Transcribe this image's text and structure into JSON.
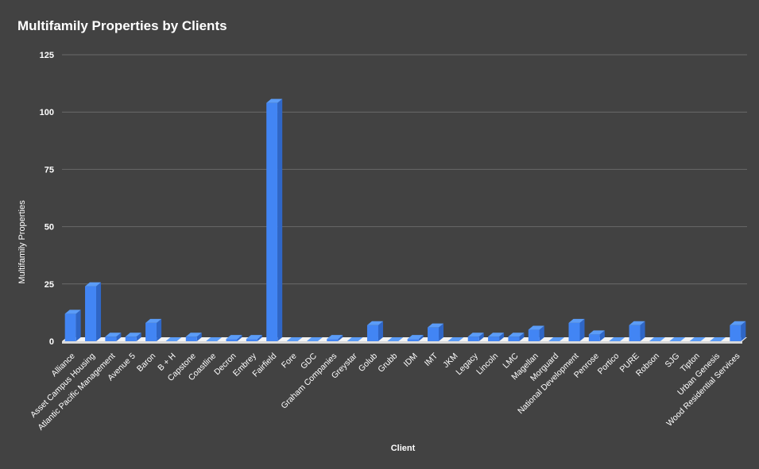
{
  "chart_data": {
    "type": "bar",
    "title": "Multifamily Properties by Clients",
    "xlabel": "Client",
    "ylabel": "Multifamily Properties",
    "ylim": [
      0,
      125
    ],
    "yticks": [
      0,
      25,
      50,
      75,
      100,
      125
    ],
    "grid": true,
    "legend": "none",
    "bar_color": "#4285f4",
    "bar_top_color": "#5b9cf7",
    "bar_side_color": "#2f66c6",
    "categories": [
      "Alliance",
      "Asset Campus Housing",
      "Atlantic Pacific Management",
      "Avenue 5",
      "Baron",
      "B + H",
      "Capstone",
      "Coastline",
      "Decron",
      "Embrey",
      "Fairfield",
      "Fore",
      "GDC",
      "Graham Companies",
      "Greystar",
      "Golub",
      "Grubb",
      "IDM",
      "IMT",
      "JKM",
      "Legacy",
      "Lincoln",
      "LMC",
      "Magellan",
      "Morguard",
      "National Development",
      "Penrose",
      "Portico",
      "PURE",
      "Robson",
      "SJG",
      "Tipton",
      "Urban Genesis",
      "Wood Residential Services"
    ],
    "values": [
      12,
      24,
      2,
      2,
      8,
      0,
      2,
      0,
      1,
      1,
      104,
      0,
      0,
      1,
      0,
      7,
      0,
      1,
      6,
      0,
      2,
      2,
      2,
      5,
      0,
      8,
      3,
      0,
      7,
      0,
      0,
      0,
      0,
      7
    ]
  }
}
